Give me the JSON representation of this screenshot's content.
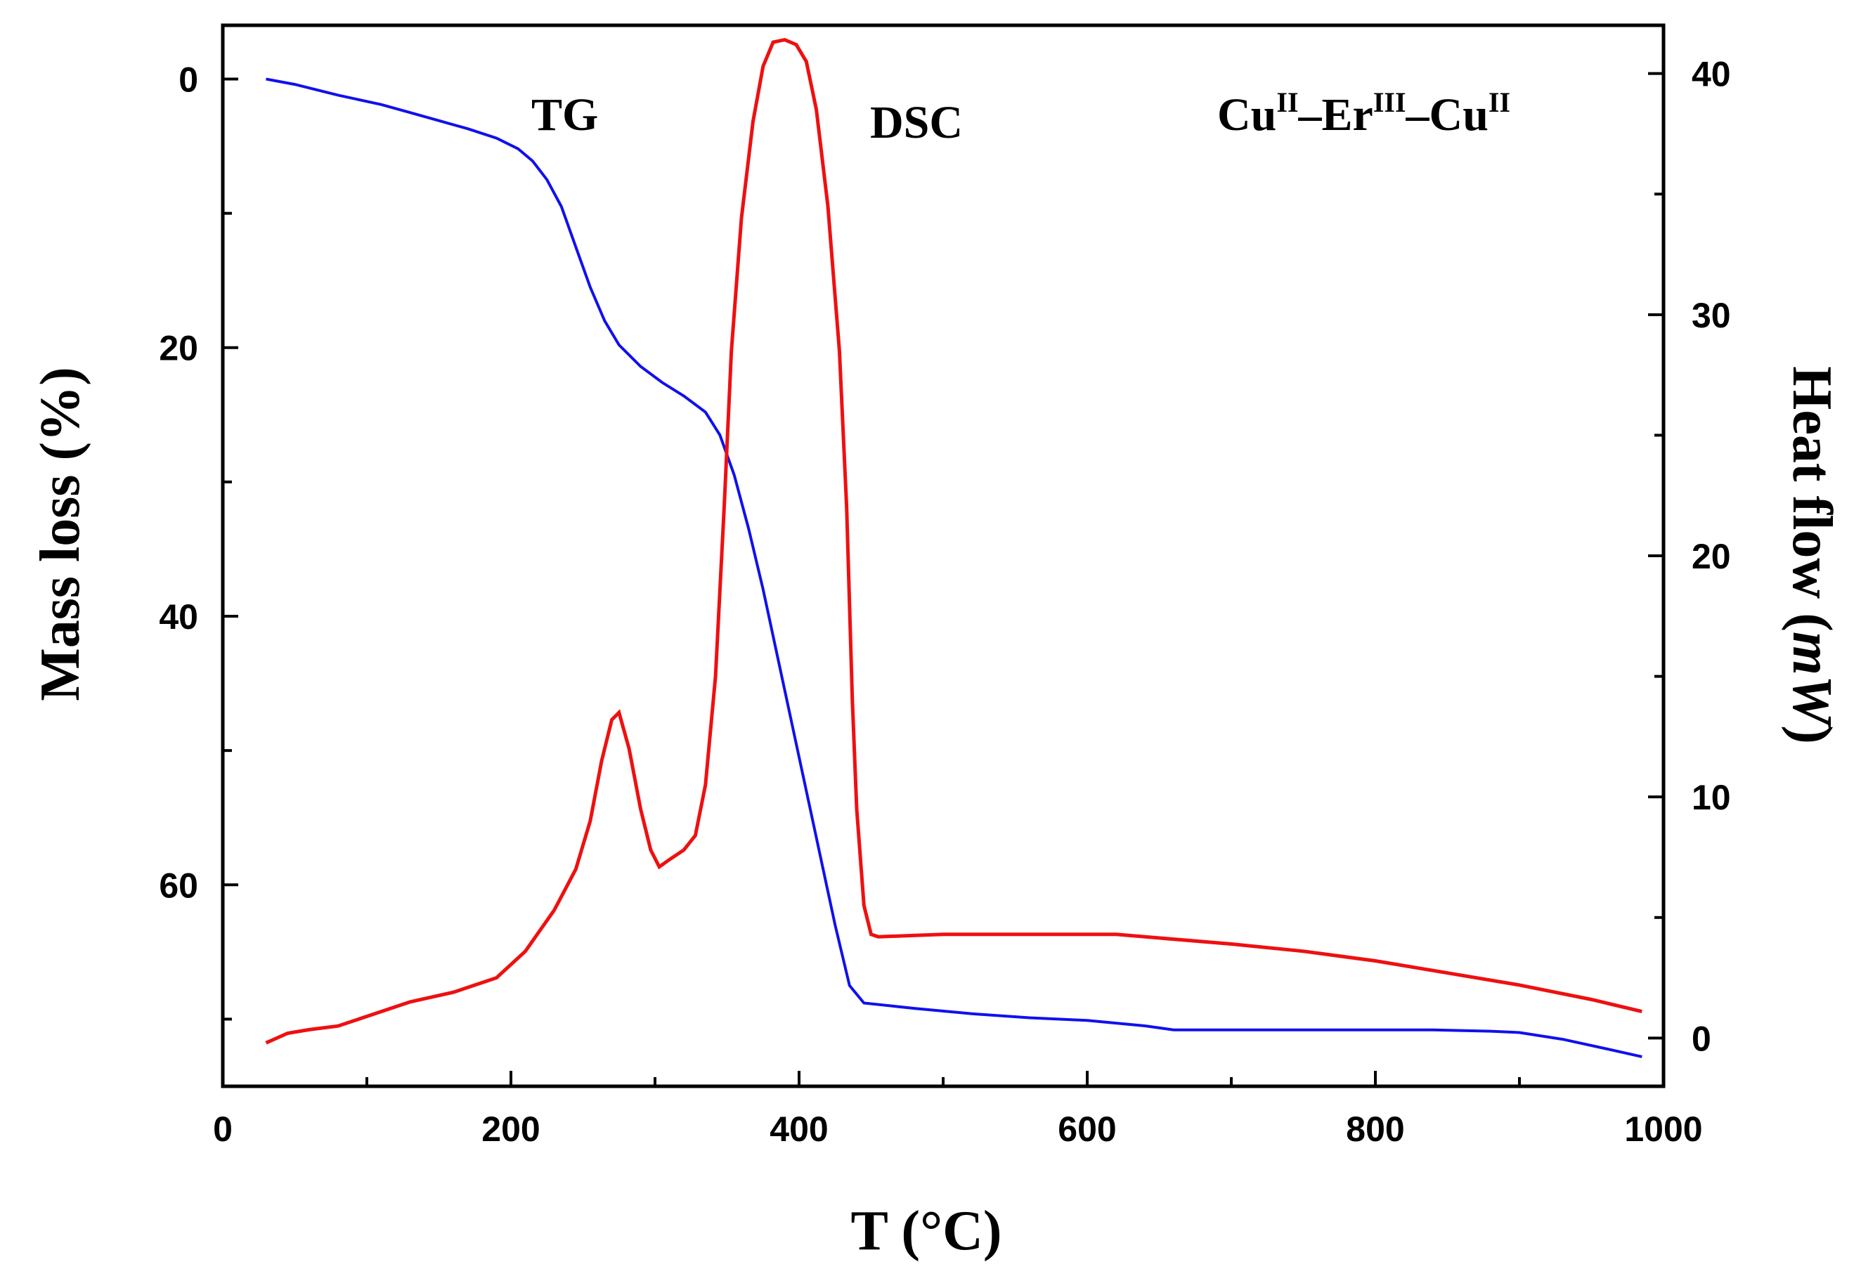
{
  "chart_data": {
    "type": "line",
    "xlabel": "T (°C)",
    "ylabel_left": "Mass loss (%)",
    "ylabel_right_main": "Heat flow (",
    "ylabel_right_unit": "mW",
    "ylabel_right_close": ")",
    "xlim": [
      0,
      1000
    ],
    "ylim_left": [
      -4,
      75
    ],
    "ylim_right": [
      -2,
      42
    ],
    "left_axis_inverted": true,
    "x_ticks": [
      0,
      200,
      400,
      600,
      800,
      1000
    ],
    "x_tick_labels": [
      "0",
      "200",
      "400",
      "600",
      "800",
      "1000"
    ],
    "y_left_ticks": [
      0,
      20,
      40,
      60
    ],
    "y_left_tick_labels": [
      "0",
      "20",
      "40",
      "60"
    ],
    "y_right_ticks": [
      0,
      10,
      20,
      30,
      40
    ],
    "y_right_tick_labels": [
      "0",
      "10",
      "20",
      "30",
      "40"
    ],
    "annotations": {
      "tg": "TG",
      "dsc": "DSC",
      "compound": {
        "cu1": "Cu",
        "cu1_sup": "II",
        "dash1": "–",
        "er": "Er",
        "er_sup": "III",
        "dash2": "–",
        "cu2": "Cu",
        "cu2_sup": "II"
      }
    },
    "series": [
      {
        "name": "TG",
        "axis": "left",
        "color": "#1010ee",
        "x": [
          30,
          50,
          80,
          110,
          130,
          150,
          170,
          190,
          205,
          215,
          225,
          235,
          245,
          255,
          265,
          275,
          290,
          305,
          320,
          335,
          345,
          355,
          365,
          375,
          385,
          395,
          405,
          415,
          425,
          435,
          445,
          480,
          520,
          560,
          600,
          640,
          660,
          700,
          760,
          800,
          840,
          880,
          900,
          930,
          960,
          985
        ],
        "values": [
          0,
          0.4,
          1.2,
          1.9,
          2.5,
          3.1,
          3.7,
          4.4,
          5.2,
          6.1,
          7.5,
          9.5,
          12.5,
          15.5,
          18.0,
          19.8,
          21.4,
          22.6,
          23.6,
          24.8,
          26.5,
          29.5,
          33.5,
          38.0,
          43.0,
          48.0,
          53.0,
          58.0,
          63.0,
          67.5,
          68.8,
          69.2,
          69.6,
          69.9,
          70.1,
          70.5,
          70.8,
          70.8,
          70.8,
          70.8,
          70.8,
          70.9,
          71.0,
          71.5,
          72.2,
          72.8
        ]
      },
      {
        "name": "DSC",
        "axis": "right",
        "color": "#ee1010",
        "x": [
          30,
          45,
          60,
          80,
          100,
          130,
          160,
          190,
          210,
          230,
          245,
          255,
          263,
          270,
          275,
          282,
          290,
          297,
          303,
          310,
          320,
          328,
          335,
          342,
          348,
          353,
          360,
          368,
          375,
          382,
          390,
          398,
          405,
          412,
          420,
          428,
          433,
          437,
          440,
          445,
          450,
          455,
          500,
          550,
          620,
          700,
          750,
          800,
          850,
          900,
          950,
          985
        ],
        "values": [
          -0.2,
          0.2,
          0.35,
          0.5,
          0.9,
          1.5,
          1.9,
          2.5,
          3.6,
          5.3,
          7.0,
          9.0,
          11.5,
          13.2,
          13.5,
          12.0,
          9.5,
          7.8,
          7.1,
          7.4,
          7.8,
          8.4,
          10.5,
          15.0,
          22.0,
          28.5,
          34.0,
          38.0,
          40.3,
          41.3,
          41.4,
          41.2,
          40.5,
          38.5,
          34.5,
          28.5,
          22.0,
          14.0,
          9.5,
          5.5,
          4.3,
          4.2,
          4.3,
          4.3,
          4.3,
          3.9,
          3.6,
          3.2,
          2.7,
          2.2,
          1.6,
          1.1
        ]
      }
    ]
  }
}
